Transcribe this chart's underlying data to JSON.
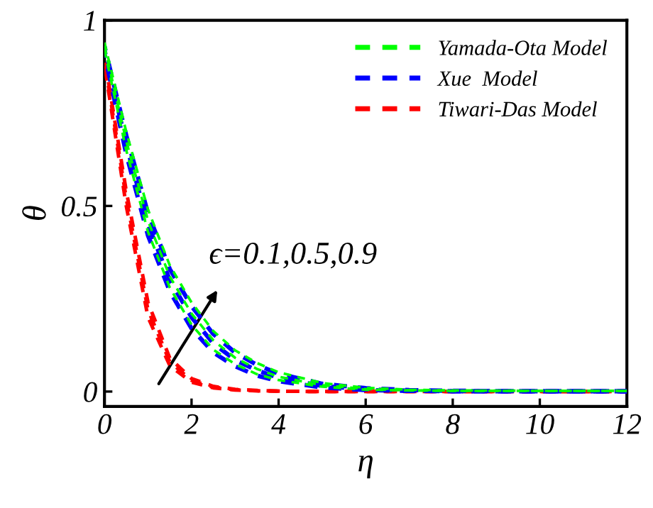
{
  "chart_data": {
    "type": "line",
    "xlabel": "η",
    "ylabel": "θ",
    "x": [
      0,
      0.5,
      1,
      1.5,
      2,
      2.5,
      3,
      3.5,
      4,
      5,
      6,
      7,
      8,
      10,
      12
    ],
    "series": [
      {
        "name": "Yamada-Ota Model",
        "color": "#00ff00",
        "values": [
          0.92,
          0.65,
          0.43,
          0.28,
          0.18,
          0.113,
          0.074,
          0.047,
          0.031,
          0.013,
          0.005,
          0.003,
          0.002,
          0.002,
          0.002
        ]
      },
      {
        "color": "#00ff00",
        "values": [
          0.93,
          0.675,
          0.46,
          0.31,
          0.21,
          0.138,
          0.091,
          0.061,
          0.04,
          0.017,
          0.007,
          0.003,
          0.002,
          0.002,
          0.002
        ]
      },
      {
        "color": "#00ff00",
        "values": [
          0.94,
          0.7,
          0.49,
          0.34,
          0.24,
          0.163,
          0.111,
          0.077,
          0.052,
          0.023,
          0.01,
          0.005,
          0.003,
          0.002,
          0.002
        ]
      },
      {
        "name": "Xue  Model",
        "color": "#0000ff",
        "values": [
          0.91,
          0.64,
          0.42,
          0.27,
          0.17,
          0.105,
          0.068,
          0.043,
          0.028,
          0.011,
          0.004,
          0.002,
          0.001,
          0.001,
          0.001
        ]
      },
      {
        "color": "#0000ff",
        "values": [
          0.92,
          0.665,
          0.45,
          0.3,
          0.2,
          0.13,
          0.085,
          0.057,
          0.037,
          0.015,
          0.006,
          0.002,
          0.001,
          0.001,
          0.001
        ]
      },
      {
        "color": "#0000ff",
        "values": [
          0.93,
          0.69,
          0.48,
          0.33,
          0.23,
          0.155,
          0.105,
          0.072,
          0.048,
          0.021,
          0.009,
          0.004,
          0.002,
          0.001,
          0.001
        ]
      },
      {
        "name": "Tiwari-Das Model",
        "color": "#ff0000",
        "values": [
          0.88,
          0.5,
          0.2,
          0.07,
          0.025,
          0.01,
          0.004,
          0.002,
          0.001,
          0,
          0,
          0,
          0,
          0,
          0
        ]
      },
      {
        "color": "#ff0000",
        "values": [
          0.89,
          0.52,
          0.22,
          0.08,
          0.03,
          0.012,
          0.005,
          0.002,
          0.001,
          0,
          0,
          0,
          0,
          0,
          0
        ]
      },
      {
        "color": "#ff0000",
        "values": [
          0.9,
          0.54,
          0.24,
          0.09,
          0.035,
          0.014,
          0.006,
          0.003,
          0.001,
          0,
          0,
          0,
          0,
          0,
          0
        ]
      }
    ],
    "xlim": [
      0,
      12
    ],
    "xticks": [
      0,
      2,
      4,
      6,
      8,
      10,
      12
    ],
    "ylim": [
      -0.04,
      1
    ],
    "yticks": [
      0,
      0.5,
      1
    ],
    "annotations": [
      "ϵ=0.1,0.5,0.9"
    ],
    "legend": "top right",
    "grid": false,
    "marker": "none",
    "line_style": "dashed"
  }
}
